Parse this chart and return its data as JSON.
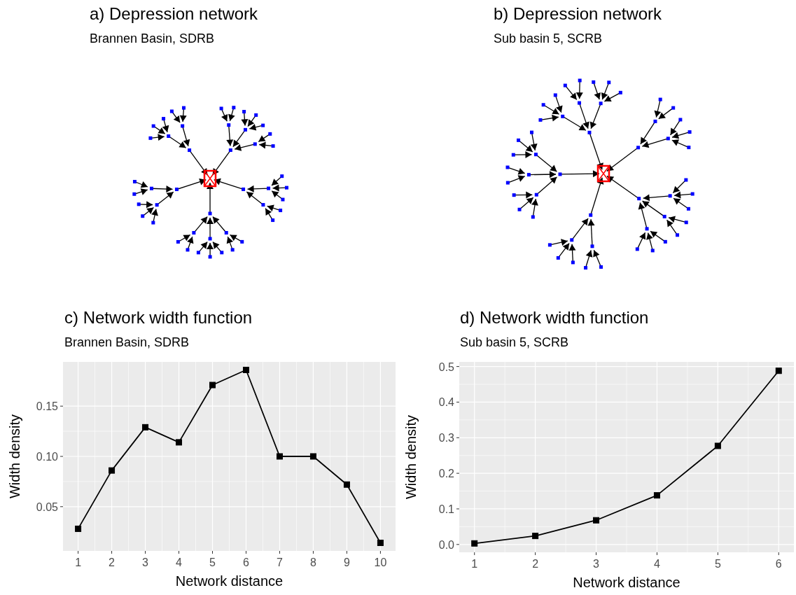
{
  "chart_data": [
    {
      "type": "other",
      "title": "a) Depression network",
      "subtitle": "Brannen Basin, SDRB"
    },
    {
      "type": "other",
      "title": "b) Depression network",
      "subtitle": "Sub basin 5, SCRB"
    },
    {
      "type": "line",
      "title": "c) Network width function",
      "subtitle": "Brannen Basin, SDRB",
      "xlabel": "Network distance",
      "ylabel": "Width density",
      "x": [
        1,
        2,
        3,
        4,
        5,
        6,
        7,
        8,
        9,
        10
      ],
      "series": [
        {
          "color": "#000000",
          "values": [
            0.028,
            0.086,
            0.129,
            0.114,
            0.171,
            0.186,
            0.1,
            0.1,
            0.072,
            0.014
          ]
        }
      ],
      "xlim": [
        0.55,
        10.45
      ],
      "ylim": [
        0.006,
        0.194
      ],
      "xticks": [
        1,
        2,
        3,
        4,
        5,
        6,
        7,
        8,
        9,
        10
      ],
      "yticks": [
        0.05,
        {
          "value": 0.1,
          "label": "0.10"
        },
        0.15
      ],
      "grid": true,
      "marker": "square",
      "line_style": "solid"
    },
    {
      "type": "line",
      "title": "d) Network width function",
      "subtitle": "Sub basin 5, SCRB",
      "xlabel": "Network distance",
      "ylabel": "Width density",
      "x": [
        1,
        2,
        3,
        4,
        5,
        6
      ],
      "series": [
        {
          "color": "#000000",
          "values": [
            0.003,
            0.024,
            0.068,
            0.138,
            0.277,
            0.488
          ]
        }
      ],
      "xlim": [
        0.75,
        6.25
      ],
      "ylim": [
        -0.022,
        0.513
      ],
      "xticks": [
        1,
        2,
        3,
        4,
        5,
        6
      ],
      "yticks": [
        {
          "value": 0,
          "label": "0.0"
        },
        0.1,
        0.2,
        0.3,
        0.4,
        0.5
      ],
      "grid": true,
      "marker": "square",
      "line_style": "solid"
    }
  ]
}
